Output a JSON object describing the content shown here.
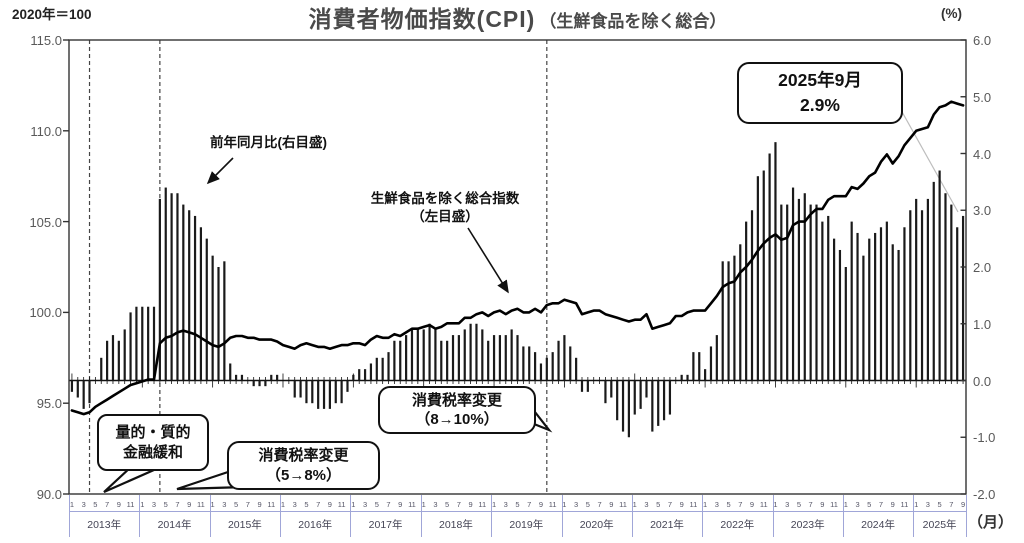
{
  "header": {
    "base_note": "2020年＝100",
    "title": "消費者物価指数(CPI)",
    "subtitle": "（生鮮食品を除く総合）",
    "right_axis_unit": "(%)"
  },
  "footer": {
    "x_axis_unit": "（月）"
  },
  "annotations": {
    "yoy_label": "前年同月比(右目盛)",
    "index_label_line1": "生鮮食品を除く総合指数",
    "index_label_line2": "（左目盛）"
  },
  "callouts": {
    "qqe": {
      "line1": "量的・質的",
      "line2": "金融緩和"
    },
    "tax_2014": {
      "line1": "消費税率変更",
      "line2": "（5→8%）"
    },
    "tax_2019": {
      "line1": "消費税率変更",
      "line2": "（8→10%）"
    },
    "latest": {
      "line1": "2025年9月",
      "line2": "2.9%"
    }
  },
  "colors": {
    "bar": "#1a1a1a",
    "line": "#000000",
    "border": "#333333",
    "dashed": "#444444",
    "leader": "#bdbdbd",
    "axis_text": "#595959",
    "calendar": "#a0a6d8",
    "title_text": "#4a4a4a"
  },
  "chart_data": {
    "type": "bar+line",
    "title": "消費者物価指数(CPI)（生鮮食品を除く総合）",
    "x_start": "2013-01",
    "x_end": "2025-09",
    "years": [
      {
        "label": "2013年",
        "months": 12
      },
      {
        "label": "2014年",
        "months": 12
      },
      {
        "label": "2015年",
        "months": 12
      },
      {
        "label": "2016年",
        "months": 12
      },
      {
        "label": "2017年",
        "months": 12
      },
      {
        "label": "2018年",
        "months": 12
      },
      {
        "label": "2019年",
        "months": 12
      },
      {
        "label": "2020年",
        "months": 12
      },
      {
        "label": "2021年",
        "months": 12
      },
      {
        "label": "2022年",
        "months": 12
      },
      {
        "label": "2023年",
        "months": 12
      },
      {
        "label": "2024年",
        "months": 12
      },
      {
        "label": "2025年",
        "months": 9
      }
    ],
    "left_axis": {
      "label": "2020年＝100",
      "min": 90,
      "max": 115,
      "ticks": [
        "115.0",
        "110.0",
        "105.0",
        "100.0",
        "95.0",
        "90.0"
      ]
    },
    "right_axis": {
      "label": "(%)",
      "min": -2,
      "max": 6,
      "ticks": [
        "6.0",
        "5.0",
        "4.0",
        "3.0",
        "2.0",
        "1.0",
        "0.0",
        "-1.0",
        "-2.0"
      ]
    },
    "events": [
      {
        "label": "量的・質的金融緩和",
        "month": "2013-04"
      },
      {
        "label": "消費税率変更（5→8%）",
        "month": "2014-04"
      },
      {
        "label": "消費税率変更（8→10%）",
        "month": "2019-10"
      }
    ],
    "latest_point": {
      "month": "2025-09",
      "yoy_pct": 2.9
    },
    "series": [
      {
        "name": "前年同月比(右目盛)",
        "type": "bar",
        "axis": "right",
        "values": [
          -0.2,
          -0.3,
          -0.5,
          -0.4,
          0.0,
          0.4,
          0.7,
          0.8,
          0.7,
          0.9,
          1.2,
          1.3,
          1.3,
          1.3,
          1.3,
          3.2,
          3.4,
          3.3,
          3.3,
          3.1,
          3.0,
          2.9,
          2.7,
          2.5,
          2.2,
          2.0,
          2.1,
          0.3,
          0.1,
          0.1,
          0.0,
          -0.1,
          -0.1,
          -0.1,
          0.1,
          0.1,
          0.0,
          0.0,
          -0.3,
          -0.3,
          -0.4,
          -0.4,
          -0.5,
          -0.5,
          -0.5,
          -0.4,
          -0.4,
          -0.2,
          0.1,
          0.2,
          0.2,
          0.3,
          0.4,
          0.4,
          0.5,
          0.7,
          0.7,
          0.8,
          0.9,
          0.9,
          0.9,
          1.0,
          0.9,
          0.7,
          0.7,
          0.8,
          0.8,
          0.9,
          1.0,
          1.0,
          0.9,
          0.7,
          0.8,
          0.8,
          0.8,
          0.9,
          0.8,
          0.6,
          0.6,
          0.5,
          0.3,
          0.4,
          0.5,
          0.7,
          0.8,
          0.6,
          0.4,
          -0.2,
          -0.2,
          0.0,
          0.0,
          -0.4,
          -0.3,
          -0.7,
          -0.9,
          -1.0,
          -0.6,
          -0.5,
          -0.3,
          -0.9,
          -0.8,
          -0.7,
          -0.6,
          0.0,
          0.1,
          0.1,
          0.5,
          0.5,
          0.2,
          0.6,
          0.8,
          2.1,
          2.1,
          2.2,
          2.4,
          2.8,
          3.0,
          3.6,
          3.7,
          4.0,
          4.2,
          3.1,
          3.1,
          3.4,
          3.2,
          3.3,
          3.1,
          3.1,
          2.8,
          2.9,
          2.5,
          2.3,
          2.0,
          2.8,
          2.6,
          2.2,
          2.5,
          2.6,
          2.7,
          2.8,
          2.4,
          2.3,
          2.7,
          3.0,
          3.2,
          3.0,
          3.2,
          3.5,
          3.7,
          3.3,
          3.1,
          2.7,
          2.9
        ]
      },
      {
        "name": "生鮮食品を除く総合指数（左目盛）",
        "type": "line",
        "axis": "left",
        "values": [
          94.6,
          94.5,
          94.4,
          94.5,
          94.8,
          95.0,
          95.2,
          95.4,
          95.6,
          95.8,
          96.0,
          96.1,
          96.2,
          96.3,
          96.3,
          98.3,
          98.6,
          98.7,
          98.9,
          99.0,
          98.9,
          98.8,
          98.6,
          98.4,
          98.2,
          98.1,
          98.3,
          98.6,
          98.7,
          98.7,
          98.6,
          98.6,
          98.5,
          98.5,
          98.5,
          98.4,
          98.2,
          98.1,
          98.0,
          98.2,
          98.3,
          98.2,
          98.1,
          98.1,
          98.0,
          98.1,
          98.2,
          98.2,
          98.3,
          98.3,
          98.2,
          98.5,
          98.7,
          98.6,
          98.6,
          98.8,
          98.7,
          98.9,
          99.1,
          99.1,
          99.2,
          99.3,
          99.1,
          99.2,
          99.4,
          99.4,
          99.4,
          99.7,
          99.7,
          99.9,
          100.0,
          99.8,
          100.0,
          100.1,
          99.9,
          100.1,
          100.2,
          100.0,
          100.0,
          100.2,
          100.0,
          100.4,
          100.5,
          100.5,
          100.7,
          100.6,
          100.5,
          99.9,
          100.0,
          100.1,
          100.1,
          99.9,
          99.8,
          99.7,
          99.6,
          99.5,
          99.6,
          99.6,
          99.9,
          99.1,
          99.2,
          99.3,
          99.4,
          99.8,
          99.8,
          100.0,
          100.1,
          100.1,
          100.1,
          100.5,
          100.9,
          101.4,
          101.6,
          101.7,
          102.2,
          102.5,
          102.9,
          103.4,
          103.8,
          104.1,
          104.3,
          104.0,
          104.1,
          104.8,
          105.0,
          105.0,
          105.4,
          105.7,
          105.7,
          106.2,
          106.4,
          106.4,
          106.4,
          106.9,
          106.8,
          107.1,
          107.5,
          107.7,
          108.3,
          108.7,
          108.2,
          108.6,
          109.2,
          109.6,
          110.0,
          110.1,
          110.2,
          110.9,
          111.3,
          111.4,
          111.6,
          111.5,
          111.4
        ]
      }
    ]
  }
}
